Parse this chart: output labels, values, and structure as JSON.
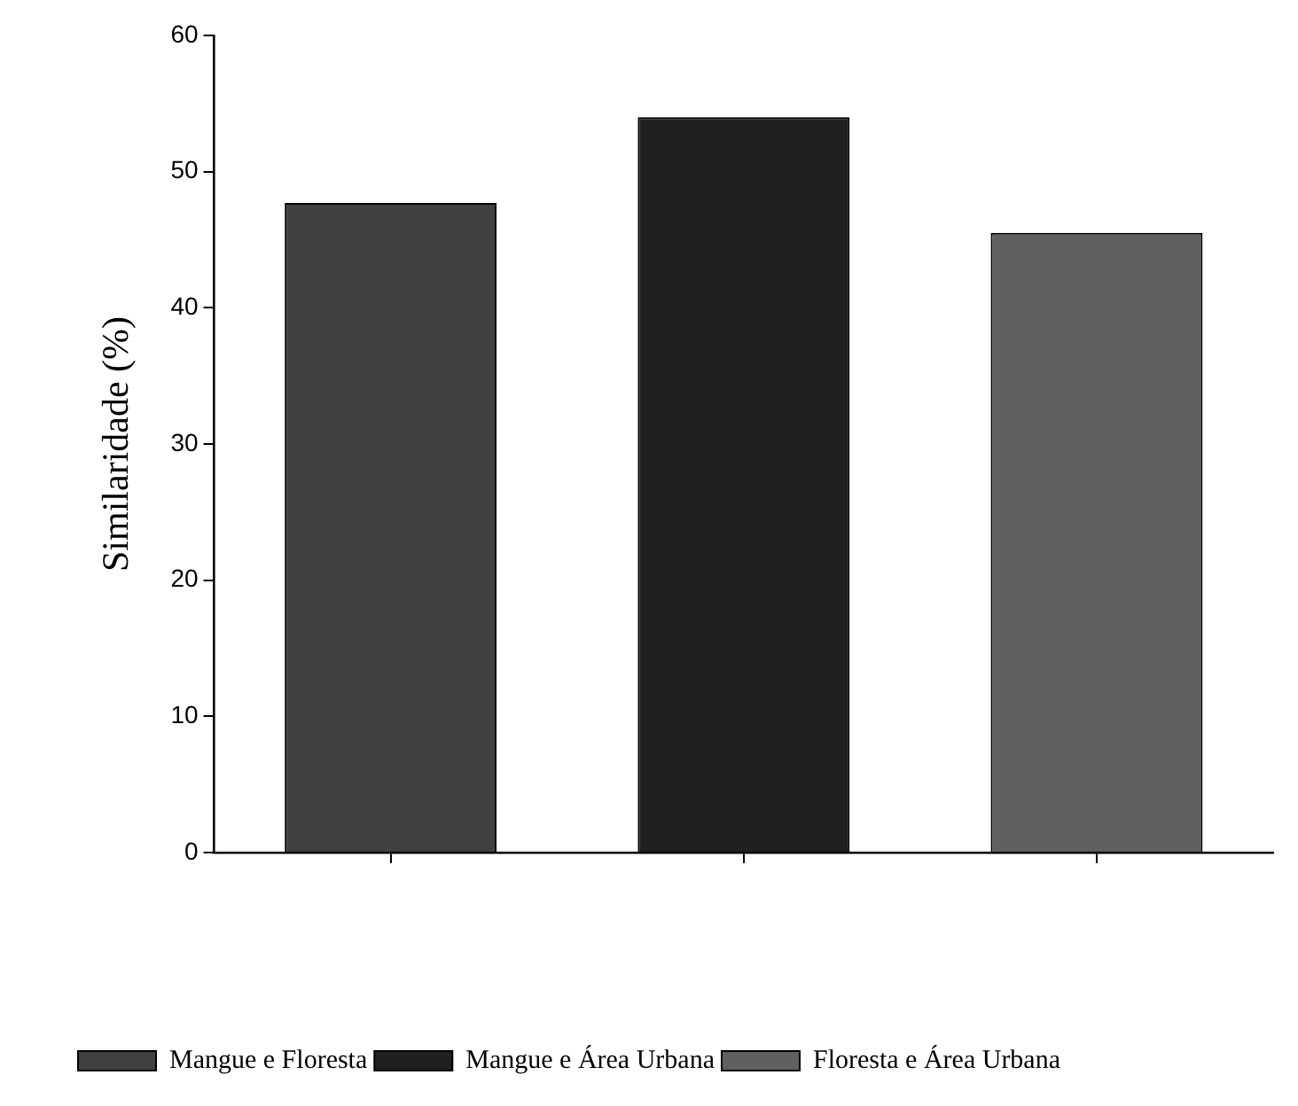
{
  "chart_data": {
    "type": "bar",
    "ylabel": "Similaridade (%)",
    "categories": [
      null,
      null,
      null
    ],
    "series": [
      {
        "name": "Mangue e Floresta",
        "color": "#404040",
        "values": [
          47.7,
          null,
          null
        ]
      },
      {
        "name": "Mangue e Área Urbana",
        "color": "#202020",
        "values": [
          null,
          54.0,
          null
        ]
      },
      {
        "name": "Floresta e Área Urbana",
        "color": "#606060",
        "values": [
          null,
          null,
          45.5
        ]
      }
    ],
    "ylim": [
      0,
      60
    ],
    "yticks": [
      0,
      10,
      20,
      30,
      40,
      50,
      60
    ],
    "grid": false,
    "legend": "bottom left",
    "tick_labels": "y"
  }
}
